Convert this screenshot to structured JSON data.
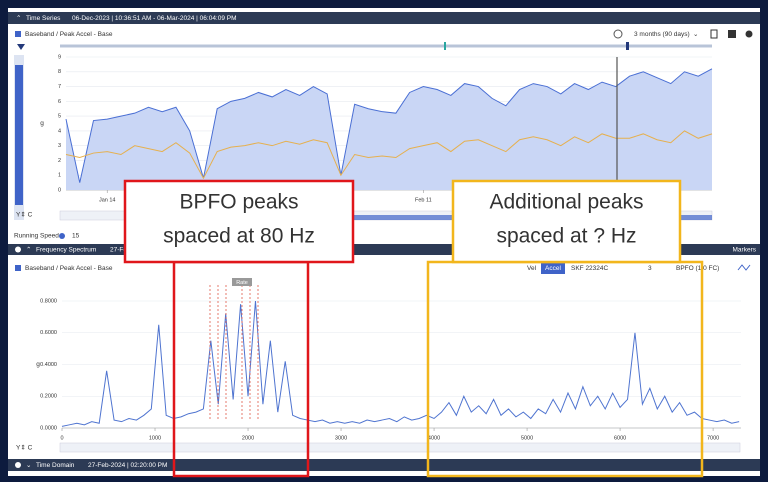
{
  "header": {
    "section": "Time Series",
    "range": "06-Dec-2023 | 10:36:51 AM - 06-Mar-2024 | 06:04:09 PM"
  },
  "time_series": {
    "title": "Baseband / Peak Accel - Base",
    "period": "3 months (90 days)",
    "chart": {
      "type": "line",
      "y_label": "g",
      "xlim": [
        0,
        47
      ],
      "xticks": [
        {
          "value": 3,
          "label": "Jan 14"
        },
        {
          "value": 26,
          "label": "Feb 11"
        }
      ],
      "ylim": [
        0,
        9
      ],
      "yticks": [
        0,
        1,
        2,
        3,
        4,
        5,
        6,
        7,
        8,
        9
      ],
      "grid": true,
      "series": [
        {
          "color": "#4a6fd4",
          "fill": "#c9d6f5",
          "values": [
            4.8,
            0.5,
            4.7,
            4.8,
            5.0,
            5.2,
            5.6,
            5.3,
            5.6,
            4.0,
            0.8,
            5.5,
            6.0,
            6.2,
            6.6,
            6.3,
            6.8,
            6.4,
            7.0,
            6.5,
            1.0,
            5.8,
            5.5,
            5.3,
            5.2,
            6.6,
            7.0,
            6.8,
            6.4,
            7.2,
            7.0,
            6.2,
            5.7,
            6.8,
            7.2,
            7.0,
            6.5,
            7.2,
            6.8,
            7.3,
            7.0,
            7.7,
            8.0,
            7.6,
            7.2,
            8.0,
            7.7,
            8.2
          ]
        },
        {
          "color": "#e6b04e",
          "values": [
            2.4,
            2.2,
            2.5,
            2.6,
            2.4,
            3.0,
            2.8,
            2.6,
            3.2,
            2.5,
            0.8,
            2.6,
            2.9,
            3.0,
            3.2,
            3.0,
            3.3,
            3.1,
            3.4,
            3.2,
            1.0,
            2.4,
            2.2,
            2.3,
            2.2,
            2.8,
            3.0,
            3.2,
            2.6,
            3.3,
            3.4,
            3.0,
            2.6,
            3.4,
            3.6,
            3.4,
            3.0,
            3.6,
            3.2,
            3.8,
            3.5,
            3.5,
            3.8,
            3.4,
            3.2,
            4.0,
            3.5,
            3.8
          ]
        }
      ]
    }
  },
  "running_speed": {
    "label": "Running Speed",
    "value": 15
  },
  "spectrum": {
    "section": "Frequency Spectrum",
    "date": "27-Feb-2024",
    "markers": "Markers",
    "title": "Baseband / Peak Accel - Base",
    "controls": {
      "velocity": "Vel",
      "acceleration": "Accel",
      "bearing": "SKF 22324C",
      "harmonics": "3",
      "fault": "BPFO (1.0 FC)"
    },
    "marker_label": "Rate",
    "chart": {
      "type": "line",
      "y_label": "g",
      "xlim": [
        0,
        7300
      ],
      "xticks": [
        0,
        1000,
        2000,
        3000,
        4000,
        5000,
        6000,
        7000
      ],
      "ylim": [
        0,
        0.8
      ],
      "yticks": [
        {
          "value": 0,
          "label": "0.0000"
        },
        {
          "value": 0.2,
          "label": "0.2000"
        },
        {
          "value": 0.4,
          "label": "0.4000"
        },
        {
          "value": 0.6,
          "label": "0.6000"
        },
        {
          "value": 0.8,
          "label": "0.8000"
        }
      ],
      "grid": true,
      "series": [
        {
          "color": "#4f74d0",
          "x": [
            0,
            80,
            160,
            240,
            320,
            400,
            480,
            560,
            640,
            720,
            800,
            880,
            960,
            1040,
            1120,
            1200,
            1280,
            1360,
            1440,
            1520,
            1600,
            1680,
            1760,
            1840,
            1920,
            2000,
            2080,
            2160,
            2240,
            2320,
            2400,
            2480,
            2560,
            2640,
            2720,
            2800,
            2880,
            2960,
            3040,
            3120,
            3200,
            3280,
            3360,
            3440,
            3520,
            3600,
            3680,
            3760,
            3840,
            3920,
            4000,
            4080,
            4160,
            4240,
            4320,
            4400,
            4480,
            4560,
            4640,
            4720,
            4800,
            4880,
            4960,
            5040,
            5120,
            5200,
            5280,
            5360,
            5440,
            5520,
            5600,
            5680,
            5760,
            5840,
            5920,
            6000,
            6080,
            6160,
            6240,
            6320,
            6400,
            6480,
            6560,
            6640,
            6720,
            6800,
            6880,
            6960,
            7040,
            7120,
            7200,
            7280
          ],
          "values": [
            0.01,
            0.02,
            0.03,
            0.02,
            0.04,
            0.03,
            0.36,
            0.05,
            0.04,
            0.06,
            0.05,
            0.08,
            0.12,
            0.65,
            0.08,
            0.06,
            0.07,
            0.09,
            0.1,
            0.12,
            0.55,
            0.15,
            0.72,
            0.18,
            0.78,
            0.2,
            0.8,
            0.15,
            0.55,
            0.1,
            0.42,
            0.08,
            0.06,
            0.05,
            0.04,
            0.05,
            0.03,
            0.04,
            0.03,
            0.04,
            0.03,
            0.05,
            0.04,
            0.05,
            0.06,
            0.04,
            0.07,
            0.05,
            0.06,
            0.08,
            0.06,
            0.1,
            0.16,
            0.08,
            0.2,
            0.1,
            0.14,
            0.09,
            0.18,
            0.08,
            0.12,
            0.07,
            0.1,
            0.06,
            0.12,
            0.09,
            0.18,
            0.1,
            0.22,
            0.12,
            0.26,
            0.14,
            0.2,
            0.12,
            0.22,
            0.13,
            0.18,
            0.6,
            0.15,
            0.25,
            0.12,
            0.2,
            0.1,
            0.16,
            0.08,
            0.1,
            0.06,
            0.05,
            0.04,
            0.05,
            0.03,
            0.04
          ]
        }
      ]
    }
  },
  "footer": {
    "section": "Time Domain",
    "date": "27-Feb-2024 | 02:20:00 PM"
  },
  "annotations": [
    {
      "lines": [
        "BPFO peaks",
        "spaced at 80 Hz"
      ],
      "color": "#e0161b"
    },
    {
      "lines": [
        "Additional peaks",
        "spaced at ? Hz"
      ],
      "color": "#f2b61c"
    }
  ]
}
